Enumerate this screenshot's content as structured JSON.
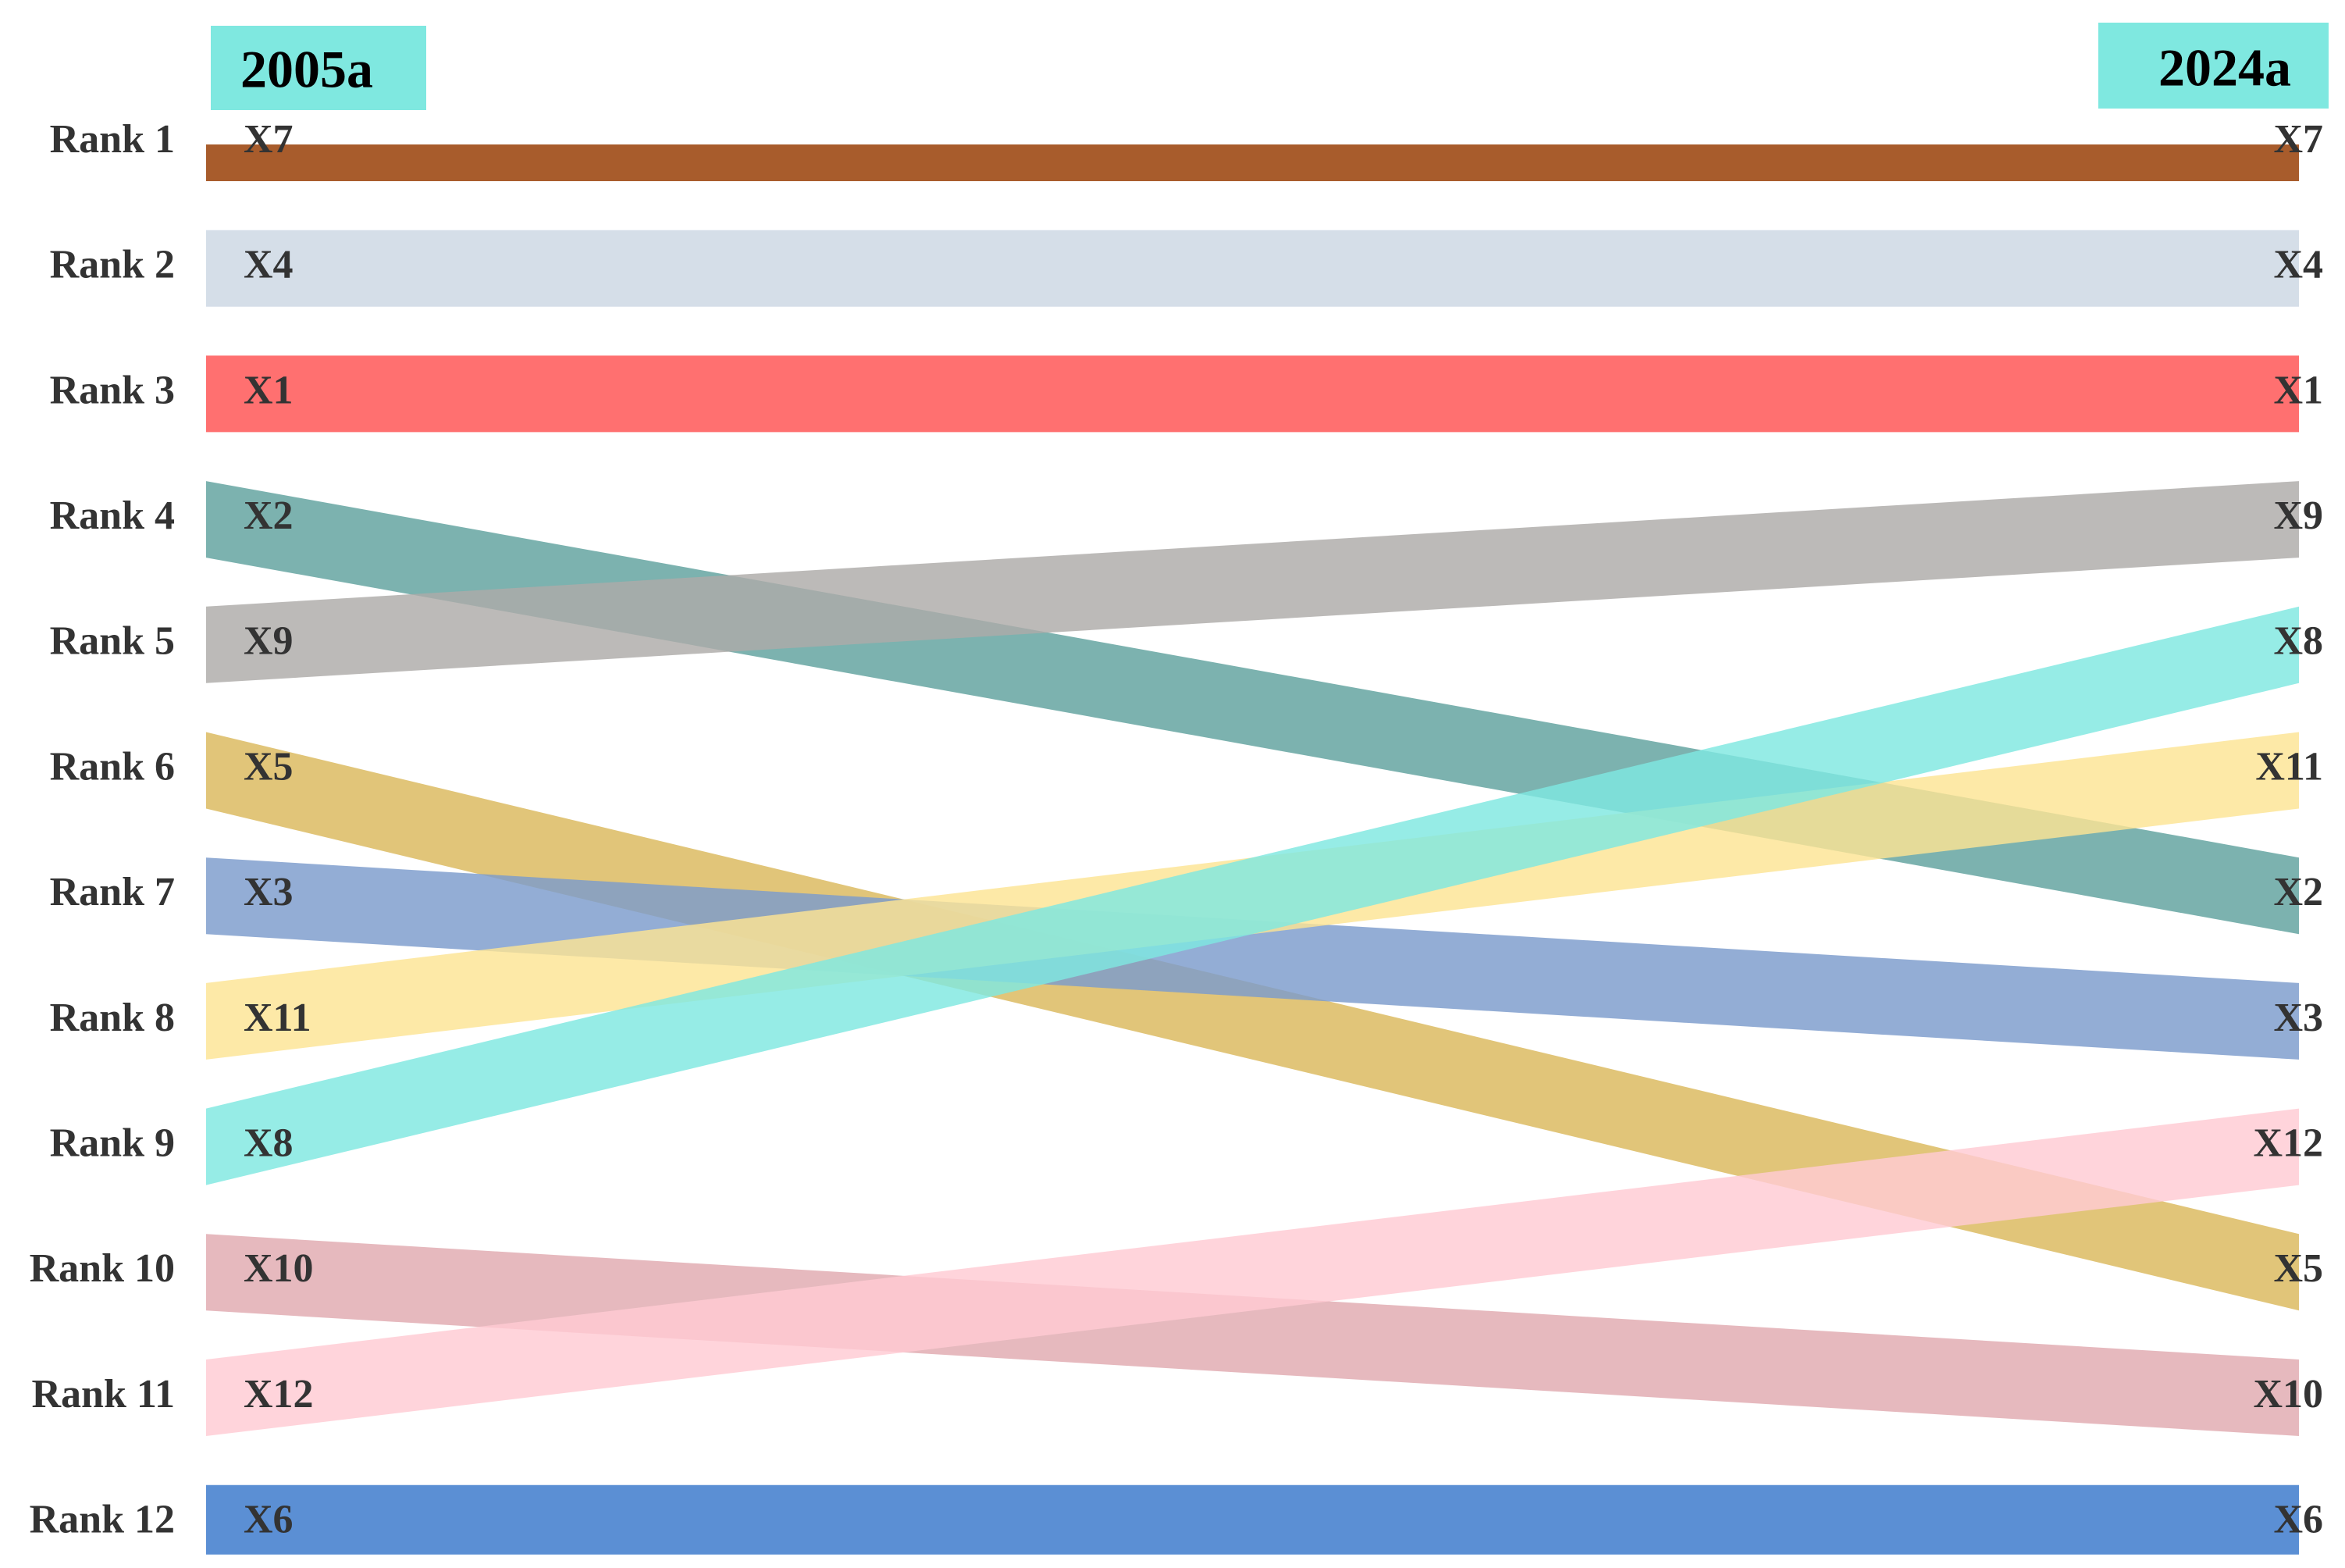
{
  "chart_data": {
    "type": "bump",
    "columns": [
      "2005a",
      "2024a"
    ],
    "header_color": "#7fe8e0",
    "ylim": [
      1,
      12
    ],
    "yticks": [
      {
        "value": 1,
        "label": "Rank 1"
      },
      {
        "value": 2,
        "label": "Rank 2"
      },
      {
        "value": 3,
        "label": "Rank 3"
      },
      {
        "value": 4,
        "label": "Rank 4"
      },
      {
        "value": 5,
        "label": "Rank 5"
      },
      {
        "value": 6,
        "label": "Rank 6"
      },
      {
        "value": 7,
        "label": "Rank 7"
      },
      {
        "value": 8,
        "label": "Rank 8"
      },
      {
        "value": 9,
        "label": "Rank 9"
      },
      {
        "value": 10,
        "label": "Rank 10"
      },
      {
        "value": 11,
        "label": "Rank 11"
      },
      {
        "value": 12,
        "label": "Rank 12"
      }
    ],
    "series": [
      {
        "name": "X7",
        "color": "#a85c2c",
        "values": [
          1,
          1
        ]
      },
      {
        "name": "X4",
        "color": "#d5dee8",
        "values": [
          2,
          2
        ]
      },
      {
        "name": "X1",
        "color": "#ff7070",
        "values": [
          3,
          3
        ]
      },
      {
        "name": "X2",
        "color": "#5fa19d",
        "values": [
          4,
          7
        ]
      },
      {
        "name": "X9",
        "color": "#adaba8",
        "values": [
          5,
          4
        ]
      },
      {
        "name": "X5",
        "color": "#dbb85c",
        "values": [
          6,
          10
        ]
      },
      {
        "name": "X3",
        "color": "#7b9bcc",
        "values": [
          7,
          8
        ]
      },
      {
        "name": "X11",
        "color": "#fde494",
        "values": [
          8,
          6
        ]
      },
      {
        "name": "X8",
        "color": "#7fe8e0",
        "values": [
          9,
          5
        ]
      },
      {
        "name": "X10",
        "color": "#e0a9b0",
        "values": [
          10,
          11
        ]
      },
      {
        "name": "X12",
        "color": "#ffcbd3",
        "values": [
          11,
          9
        ]
      },
      {
        "name": "X6",
        "color": "#5b8fd4",
        "values": [
          12,
          12
        ]
      }
    ]
  }
}
